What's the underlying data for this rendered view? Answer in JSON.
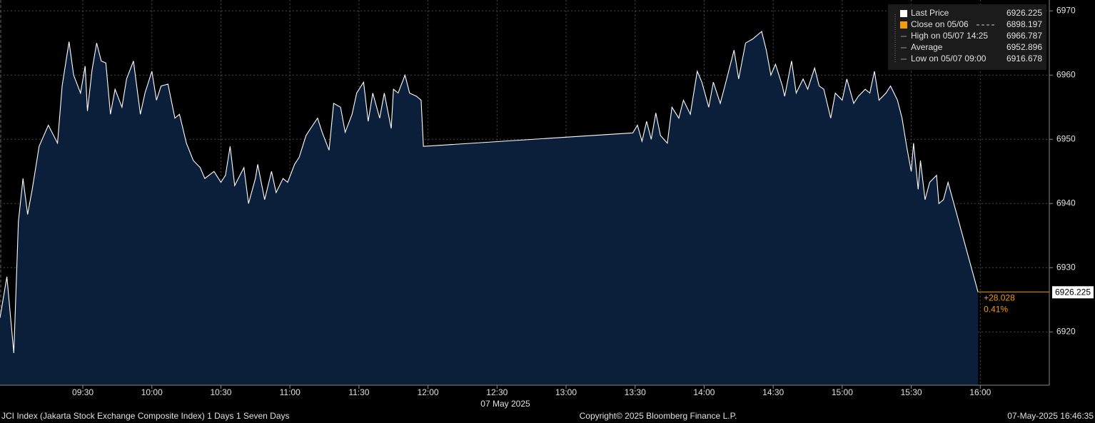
{
  "chart_data": {
    "type": "area",
    "x": [
      534,
      537,
      540,
      542,
      544,
      546,
      548,
      551,
      555,
      559,
      561,
      564,
      566,
      569,
      571,
      572,
      574,
      576,
      578,
      580,
      582,
      584,
      587,
      589,
      592,
      595,
      597,
      600,
      602,
      604,
      607,
      610,
      612,
      615,
      618,
      621,
      623,
      627,
      630,
      632,
      634,
      636,
      640,
      642,
      645,
      646,
      649,
      652,
      654,
      657,
      659,
      662,
      664,
      667,
      669,
      672,
      674,
      677,
      679,
      682,
      684,
      687,
      689,
      692,
      694,
      696,
      699,
      701,
      704,
      705,
      707,
      710,
      712,
      715,
      717,
      718,
      809,
      811,
      813,
      815,
      817,
      819,
      821,
      824,
      826,
      829,
      831,
      834,
      837,
      839,
      842,
      844,
      847,
      849,
      853,
      855,
      858,
      861,
      865,
      867,
      869,
      871,
      874,
      875,
      878,
      880,
      883,
      885,
      888,
      890,
      892,
      895,
      897,
      900,
      902,
      905,
      907,
      910,
      912,
      914,
      916,
      919,
      921,
      924,
      926,
      928,
      930,
      931,
      933,
      934,
      936,
      938,
      941,
      942,
      944,
      946,
      959
    ],
    "series": [
      {
        "name": "Last Price",
        "color": "#ffffff",
        "fill": "#0b1f3b",
        "values": [
          6922.2,
          6928.6,
          6916.7,
          6937.2,
          6943.9,
          6938.3,
          6942.2,
          6948.9,
          6952.2,
          6949.4,
          6958.3,
          6965.2,
          6960,
          6957.2,
          6961.4,
          6954.4,
          6960.8,
          6965,
          6962.2,
          6961.9,
          6953.9,
          6957.8,
          6955,
          6959.4,
          6962.2,
          6953.9,
          6957.2,
          6960.6,
          6956.1,
          6958.3,
          6958.6,
          6953.3,
          6953.9,
          6949.4,
          6946.7,
          6945.6,
          6943.9,
          6945,
          6943.3,
          6944.4,
          6948.9,
          6942.8,
          6945.6,
          6940,
          6943.9,
          6946.1,
          6940.6,
          6945,
          6941.7,
          6943.9,
          6943.3,
          6946.1,
          6947.2,
          6950.6,
          6951.7,
          6953.3,
          6951.1,
          6948.3,
          6955.6,
          6955,
          6951.1,
          6953.9,
          6957.2,
          6958.9,
          6952.8,
          6957.2,
          6953.3,
          6957.2,
          6951.7,
          6957.8,
          6957.2,
          6960,
          6957.2,
          6956.7,
          6956.1,
          6948.9,
          6951,
          6952.2,
          6949.7,
          6952.8,
          6950,
          6954.1,
          6950.6,
          6949.4,
          6955,
          6953.3,
          6956.1,
          6953.9,
          6960.6,
          6958.9,
          6955,
          6958.9,
          6955.6,
          6958.3,
          6963.9,
          6959.4,
          6965,
          6965.6,
          6966.8,
          6963.9,
          6960,
          6961.7,
          6958.3,
          6956.7,
          6962.2,
          6957.2,
          6959.4,
          6957.8,
          6961.1,
          6958.3,
          6957.8,
          6953.3,
          6957.2,
          6956.1,
          6959.4,
          6955.6,
          6956.7,
          6957.8,
          6957.2,
          6960.6,
          6956.1,
          6957.2,
          6958.3,
          6956.1,
          6953.3,
          6948.9,
          6945,
          6949.4,
          6942.2,
          6946.7,
          6940.6,
          6943.3,
          6944.4,
          6940,
          6940.6,
          6943.3,
          6926.225
        ]
      }
    ],
    "xlim": [
      534,
      990
    ],
    "ylim": [
      6911.7,
      6971.7
    ],
    "xticks": [
      {
        "value": 570,
        "label": "09:30"
      },
      {
        "value": 600,
        "label": "10:00"
      },
      {
        "value": 630,
        "label": "10:30"
      },
      {
        "value": 660,
        "label": "11:00"
      },
      {
        "value": 690,
        "label": "11:30"
      },
      {
        "value": 720,
        "label": "12:00"
      },
      {
        "value": 750,
        "label": "12:30"
      },
      {
        "value": 780,
        "label": "13:00"
      },
      {
        "value": 810,
        "label": "13:30"
      },
      {
        "value": 840,
        "label": "14:00"
      },
      {
        "value": 870,
        "label": "14:30"
      },
      {
        "value": 900,
        "label": "15:00"
      },
      {
        "value": 930,
        "label": "15:30"
      },
      {
        "value": 960,
        "label": "16:00"
      }
    ],
    "yticks": [
      6920,
      6930,
      6940,
      6950,
      6960,
      6970
    ],
    "x_axis_label": "07 May 2025",
    "grid": true,
    "last_value": 6926.225,
    "reference": {
      "label": "Close on 05/06",
      "value": 6898.197,
      "color": "#f39c12"
    },
    "stats": [
      {
        "label": "High on 05/07 14:25",
        "value": 6966.787
      },
      {
        "label": "Average",
        "value": 6952.896
      },
      {
        "label": "Low on 05/07 09:00",
        "value": 6916.678
      }
    ],
    "change": {
      "value": 28.028,
      "label": "+28.028"
    },
    "change_pct": {
      "value": 0.41,
      "label": "0.41%"
    },
    "change_color": "#f39c12"
  },
  "footer": {
    "left": "JCI Index (Jakarta Stock Exchange Composite Index) 1 Days 1 Seven Days",
    "center": "Copyright© 2025 Bloomberg Finance L.P.",
    "right": "07-May-2025 16:46:35"
  }
}
